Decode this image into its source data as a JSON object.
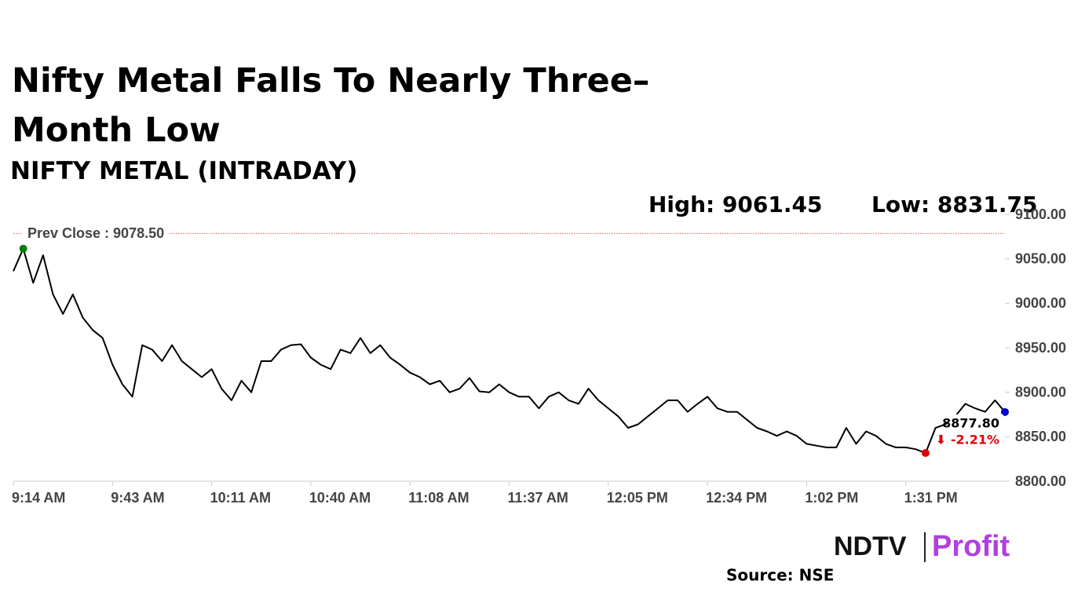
{
  "chart_data": {
    "type": "line",
    "title": "Nifty Metal Falls To Nearly Three–Month Low",
    "subtitle": "NIFTY METAL (INTRADAY)",
    "high_label": "High: 9061.45",
    "low_label": "Low: 8831.75",
    "prev_close": {
      "value": 9078.5,
      "label": "Prev Close : 9078.50"
    },
    "last_label": "8877.80",
    "change_label": "⬇ -2.21%",
    "logo": [
      "NDTV",
      "Profit"
    ],
    "source": "Source: NSE",
    "categories": [
      "9:14 AM",
      null,
      null,
      null,
      null,
      null,
      null,
      null,
      null,
      null,
      "9:43 AM",
      null,
      null,
      null,
      null,
      null,
      null,
      null,
      null,
      null,
      "10:11 AM",
      null,
      null,
      null,
      null,
      null,
      null,
      null,
      null,
      null,
      "10:40 AM",
      null,
      null,
      null,
      null,
      null,
      null,
      null,
      null,
      null,
      "11:08 AM",
      null,
      null,
      null,
      null,
      null,
      null,
      null,
      null,
      null,
      "11:37 AM",
      null,
      null,
      null,
      null,
      null,
      null,
      null,
      null,
      null,
      "12:05 PM",
      null,
      null,
      null,
      null,
      null,
      null,
      null,
      null,
      null,
      "12:34 PM",
      null,
      null,
      null,
      null,
      null,
      null,
      null,
      null,
      null,
      "1:02 PM",
      null,
      null,
      null,
      null,
      null,
      null,
      null,
      null,
      null,
      "1:31 PM",
      null,
      null,
      null,
      null,
      null,
      null,
      null,
      null,
      null,
      null
    ],
    "series": [
      {
        "name": "NIFTY METAL",
        "color": "#000000",
        "values": [
          9036,
          9061.45,
          9023,
          9054,
          9010,
          8988,
          9010,
          8984,
          8970,
          8961,
          8931,
          8909,
          8895,
          8953,
          8948,
          8935,
          8953,
          8935,
          8926,
          8917,
          8926,
          8904,
          8891,
          8913,
          8900,
          8935,
          8935,
          8948,
          8953,
          8954,
          8939,
          8931,
          8926,
          8948,
          8944,
          8961,
          8944,
          8953,
          8939,
          8931,
          8922,
          8917,
          8909,
          8913,
          8900,
          8904,
          8916,
          8901,
          8900,
          8909,
          8900,
          8895,
          8895,
          8882,
          8895,
          8900,
          8891,
          8887,
          8904,
          8891,
          8882,
          8873,
          8860,
          8864,
          8873,
          8882,
          8891,
          8891,
          8878,
          8887,
          8895,
          8882,
          8878,
          8878,
          8869,
          8860,
          8856,
          8851,
          8856,
          8851,
          8842,
          8840,
          8838,
          8838,
          8860,
          8842,
          8856,
          8851,
          8842,
          8838,
          8838,
          8836,
          8831.75,
          8860,
          8864,
          8873,
          8887,
          8882,
          8878,
          8891,
          8877.8
        ]
      }
    ],
    "high_color": "#008000",
    "low_color": "#e00000",
    "last_color": "#0000cc",
    "prev_close_color": "#e06060",
    "ylim": [
      8800,
      9100
    ],
    "yticks": [
      {
        "value": 8800,
        "label": "8800.00"
      },
      {
        "value": 8850,
        "label": "8850.00"
      },
      {
        "value": 8900,
        "label": "8900.00"
      },
      {
        "value": 8950,
        "label": "8950.00"
      },
      {
        "value": 9000,
        "label": "9000.00"
      },
      {
        "value": 9050,
        "label": "9050.00"
      },
      {
        "value": 9100,
        "label": "9100.00"
      }
    ]
  }
}
